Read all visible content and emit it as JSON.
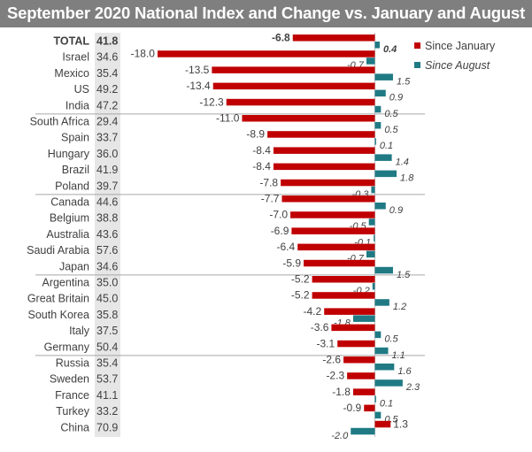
{
  "chart_data": {
    "type": "bar",
    "title": "September 2020 National Index and Change vs. January and August",
    "legend": [
      {
        "name": "Since January",
        "color": "#c00000",
        "position": "top-right"
      },
      {
        "name": "Since August",
        "color": "#1f7a84",
        "position": "top-right",
        "italic": true
      }
    ],
    "categories": [
      "TOTAL",
      "Israel",
      "Mexico",
      "US",
      "India",
      "South Africa",
      "Spain",
      "Hungary",
      "Brazil",
      "Poland",
      "Canada",
      "Belgium",
      "Australia",
      "Saudi Arabia",
      "Japan",
      "Argentina",
      "Great Britain",
      "South Korea",
      "Italy",
      "Germany",
      "Russia",
      "Sweden",
      "France",
      "Turkey",
      "China"
    ],
    "index": [
      "41.8",
      "34.6",
      "35.4",
      "49.2",
      "47.2",
      "29.4",
      "33.7",
      "36.0",
      "41.9",
      "39.7",
      "44.6",
      "38.8",
      "43.6",
      "57.6",
      "34.6",
      "35.0",
      "45.0",
      "35.8",
      "37.5",
      "50.4",
      "35.4",
      "53.7",
      "41.1",
      "33.2",
      "70.9"
    ],
    "series": [
      {
        "name": "Since January",
        "values": [
          -6.8,
          -18.0,
          -13.5,
          -13.4,
          -12.3,
          -11.0,
          -8.9,
          -8.4,
          -8.4,
          -7.8,
          -7.7,
          -7.0,
          -6.9,
          -6.4,
          -5.9,
          -5.2,
          -5.2,
          -4.2,
          -3.6,
          -3.1,
          -2.6,
          -2.3,
          -1.8,
          -0.9,
          1.3
        ],
        "labels": [
          "-6.8",
          "-18.0",
          "-13.5",
          "-13.4",
          "-12.3",
          "-11.0",
          "-8.9",
          "-8.4",
          "-8.4",
          "-7.8",
          "-7.7",
          "-7.0",
          "-6.9",
          "-6.4",
          "-5.9",
          "-5.2",
          "-5.2",
          "-4.2",
          "-3.6",
          "-3.1",
          "-2.6",
          "-2.3",
          "-1.8",
          "-0.9",
          "1.3"
        ]
      },
      {
        "name": "Since August",
        "values": [
          0.4,
          -0.7,
          1.5,
          0.9,
          0.5,
          0.5,
          0.1,
          1.4,
          1.8,
          -0.3,
          0.9,
          -0.5,
          -0.1,
          -0.7,
          1.5,
          -0.2,
          1.2,
          -1.8,
          0.5,
          1.1,
          1.6,
          2.3,
          0.1,
          0.5,
          -2.0
        ],
        "labels": [
          "0.4",
          "-0.7",
          "1.5",
          "0.9",
          "0.5",
          "0.5",
          "0.1",
          "1.4",
          "1.8",
          "-0.3",
          "0.9",
          "-0.5",
          "-0.1",
          "-0.7",
          "1.5",
          "-0.2",
          "1.2",
          "-1.8",
          "0.5",
          "1.1",
          "1.6",
          "2.3",
          "0.1",
          "0.5",
          "-2.0"
        ]
      }
    ],
    "group_separators_after": [
      "India",
      "Poland",
      "Japan",
      "Germany"
    ],
    "grid": false
  }
}
